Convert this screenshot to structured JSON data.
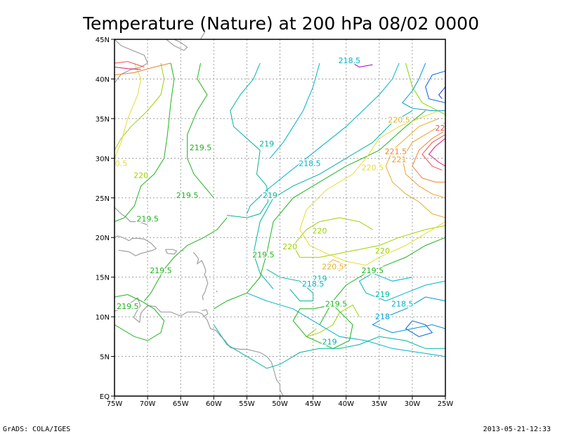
{
  "chart_data": {
    "type": "contour",
    "title": "Temperature (Nature) at 200 hPa 08/02 0000",
    "x_tick_labels": [
      "75W",
      "70W",
      "65W",
      "60W",
      "55W",
      "50W",
      "45W",
      "40W",
      "35W",
      "30W",
      "25W"
    ],
    "y_tick_labels": [
      "EQ",
      "5N",
      "10N",
      "15N",
      "20N",
      "25N",
      "30N",
      "35N",
      "40N",
      "45N"
    ],
    "xlim_lon": [
      -75,
      -25
    ],
    "ylim_lat": [
      0,
      45
    ],
    "grid": true,
    "contour_interval": 0.5,
    "contour_labels": [
      {
        "text": "218.5",
        "lon": -39.5,
        "lat": 42,
        "color": "#00b4c8"
      },
      {
        "text": "219",
        "lon": -52,
        "lat": 31.5,
        "color": "#00b4a0"
      },
      {
        "text": "219.5",
        "lon": -62,
        "lat": 31,
        "color": "#1eb41e"
      },
      {
        "text": "218.5",
        "lon": -45.5,
        "lat": 29,
        "color": "#00b4c8"
      },
      {
        "text": "219",
        "lon": -51.5,
        "lat": 25,
        "color": "#00b4a0"
      },
      {
        "text": "219.5",
        "lon": -64,
        "lat": 25,
        "color": "#1eb41e"
      },
      {
        "text": "220",
        "lon": -71,
        "lat": 27.5,
        "color": "#a0d200"
      },
      {
        "text": "0.5",
        "lon": -74,
        "lat": 29,
        "color": "#e6dc32"
      },
      {
        "text": "220.5",
        "lon": -32,
        "lat": 34.5,
        "color": "#e6af2d"
      },
      {
        "text": "221.5",
        "lon": -32.5,
        "lat": 30.5,
        "color": "#f08228"
      },
      {
        "text": "221",
        "lon": -32,
        "lat": 29.5,
        "color": "#f0a028"
      },
      {
        "text": "220.5",
        "lon": -36,
        "lat": 28.5,
        "color": "#e6dc32"
      },
      {
        "text": "22",
        "lon": -25.8,
        "lat": 33.5,
        "color": "#f05050"
      },
      {
        "text": "219.5",
        "lon": -70,
        "lat": 22,
        "color": "#1eb41e"
      },
      {
        "text": "220",
        "lon": -44,
        "lat": 20.5,
        "color": "#a0d200"
      },
      {
        "text": "220",
        "lon": -48.5,
        "lat": 18.5,
        "color": "#a0d200"
      },
      {
        "text": "219.5",
        "lon": -52.5,
        "lat": 17.5,
        "color": "#1eb41e"
      },
      {
        "text": "220",
        "lon": -34.5,
        "lat": 18,
        "color": "#a0d200"
      },
      {
        "text": "220.5",
        "lon": -42,
        "lat": 16,
        "color": "#e6af2d"
      },
      {
        "text": "219.5",
        "lon": -68,
        "lat": 15.5,
        "color": "#1eb41e"
      },
      {
        "text": "219.5",
        "lon": -36,
        "lat": 15.5,
        "color": "#1eb41e"
      },
      {
        "text": "219",
        "lon": -44,
        "lat": 14.5,
        "color": "#00b4a0"
      },
      {
        "text": "218.5",
        "lon": -45,
        "lat": 13.8,
        "color": "#00b4c8"
      },
      {
        "text": "219",
        "lon": -34.5,
        "lat": 12.5,
        "color": "#00b4a0"
      },
      {
        "text": "219.5",
        "lon": -73,
        "lat": 11,
        "color": "#1eb41e"
      },
      {
        "text": "219.5",
        "lon": -41.5,
        "lat": 11.3,
        "color": "#1eb41e"
      },
      {
        "text": "218.5",
        "lon": -31.5,
        "lat": 11.3,
        "color": "#00b4c8"
      },
      {
        "text": "218",
        "lon": -34.5,
        "lat": 9.7,
        "color": "#0096d2"
      },
      {
        "text": "219",
        "lon": -42.5,
        "lat": 6.5,
        "color": "#00b4a0"
      }
    ]
  },
  "footer": {
    "left": "GrADS: COLA/IGES",
    "right": "2013-05-21-12:33"
  }
}
